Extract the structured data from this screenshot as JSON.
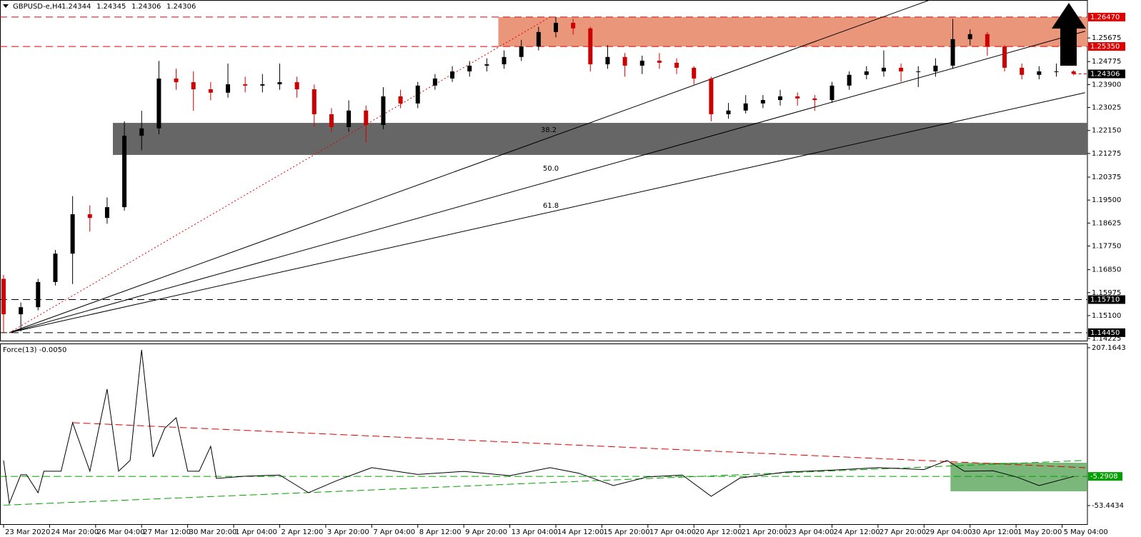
{
  "header": {
    "symbol": "GBPUSD-e,H4",
    "ohlc": [
      1.24344,
      1.24345,
      1.24306,
      1.24306
    ]
  },
  "chart_data": [
    {
      "type": "candlestick",
      "xlim": [
        -0.62,
        188.4
      ],
      "ylim": [
        1.1412,
        1.2712
      ],
      "up_color": "#000000",
      "down_color": "#cc0000",
      "ohlc": [
        [
          1.165,
          1.1665,
          1.1445,
          1.1515
        ],
        [
          1.1515,
          1.156,
          1.145,
          1.1542
        ],
        [
          1.1542,
          1.165,
          1.153,
          1.1638
        ],
        [
          1.1638,
          1.176,
          1.1625,
          1.1746
        ],
        [
          1.1746,
          1.1965,
          1.163,
          1.1896
        ],
        [
          1.1896,
          1.193,
          1.183,
          1.1882
        ],
        [
          1.1882,
          1.196,
          1.186,
          1.1923
        ],
        [
          1.1923,
          1.225,
          1.191,
          1.2195
        ],
        [
          1.2195,
          1.229,
          1.214,
          1.2223
        ],
        [
          1.2223,
          1.248,
          1.22,
          1.2413
        ],
        [
          1.2413,
          1.245,
          1.237,
          1.2399
        ],
        [
          1.2399,
          1.244,
          1.229,
          1.2372
        ],
        [
          1.2372,
          1.24,
          1.233,
          1.2359
        ],
        [
          1.2359,
          1.247,
          1.234,
          1.2391
        ],
        [
          1.2391,
          1.242,
          1.236,
          1.2386
        ],
        [
          1.2386,
          1.243,
          1.236,
          1.2391
        ],
        [
          1.2391,
          1.247,
          1.237,
          1.2399
        ],
        [
          1.2399,
          1.242,
          1.234,
          1.2372
        ],
        [
          1.2372,
          1.239,
          1.223,
          1.2277
        ],
        [
          1.2277,
          1.23,
          1.221,
          1.2228
        ],
        [
          1.2228,
          1.233,
          1.221,
          1.2291
        ],
        [
          1.2291,
          1.231,
          1.217,
          1.2236
        ],
        [
          1.2236,
          1.238,
          1.222,
          1.2345
        ],
        [
          1.2345,
          1.237,
          1.23,
          1.2318
        ],
        [
          1.2318,
          1.24,
          1.23,
          1.2386
        ],
        [
          1.2386,
          1.243,
          1.237,
          1.2413
        ],
        [
          1.2413,
          1.246,
          1.24,
          1.244
        ],
        [
          1.244,
          1.248,
          1.242,
          1.2462
        ],
        [
          1.2462,
          1.249,
          1.244,
          1.2467
        ],
        [
          1.2467,
          1.252,
          1.245,
          1.2495
        ],
        [
          1.2495,
          1.256,
          1.248,
          1.2535
        ],
        [
          1.2535,
          1.261,
          1.252,
          1.259
        ],
        [
          1.259,
          1.2647,
          1.257,
          1.2625
        ],
        [
          1.2625,
          1.264,
          1.258,
          1.2604
        ],
        [
          1.2604,
          1.261,
          1.244,
          1.2467
        ],
        [
          1.2467,
          1.254,
          1.245,
          1.2495
        ],
        [
          1.2495,
          1.251,
          1.242,
          1.2462
        ],
        [
          1.2462,
          1.25,
          1.243,
          1.2481
        ],
        [
          1.2481,
          1.251,
          1.245,
          1.2473
        ],
        [
          1.2473,
          1.249,
          1.243,
          1.2454
        ],
        [
          1.2454,
          1.246,
          1.239,
          1.2413
        ],
        [
          1.2413,
          1.242,
          1.225,
          1.2277
        ],
        [
          1.2277,
          1.232,
          1.226,
          1.2291
        ],
        [
          1.2291,
          1.235,
          1.228,
          1.2318
        ],
        [
          1.2318,
          1.235,
          1.23,
          1.2331
        ],
        [
          1.2331,
          1.237,
          1.231,
          1.2345
        ],
        [
          1.2345,
          1.236,
          1.231,
          1.2337
        ],
        [
          1.2337,
          1.235,
          1.229,
          1.2331
        ],
        [
          1.2331,
          1.24,
          1.232,
          1.2386
        ],
        [
          1.2386,
          1.244,
          1.237,
          1.2427
        ],
        [
          1.2427,
          1.246,
          1.241,
          1.244
        ],
        [
          1.244,
          1.252,
          1.242,
          1.2454
        ],
        [
          1.2454,
          1.247,
          1.24,
          1.244
        ],
        [
          1.244,
          1.246,
          1.238,
          1.244
        ],
        [
          1.244,
          1.249,
          1.242,
          1.2462
        ],
        [
          1.2462,
          1.264,
          1.245,
          1.2563
        ],
        [
          1.2563,
          1.26,
          1.254,
          1.2582
        ],
        [
          1.2582,
          1.259,
          1.25,
          1.2535
        ],
        [
          1.2535,
          1.254,
          1.244,
          1.2454
        ],
        [
          1.2454,
          1.247,
          1.241,
          1.2427
        ],
        [
          1.2427,
          1.246,
          1.241,
          1.244
        ],
        [
          1.244,
          1.247,
          1.242,
          1.244
        ],
        [
          1.244,
          1.2445,
          1.2425,
          1.24306
        ]
      ],
      "yticks": [
        1.25675,
        1.24775,
        {
          "value": 1.239,
          "label": "1.23900"
        },
        1.23025,
        {
          "value": 1.2215,
          "label": "1.22150"
        },
        1.21275,
        1.20375,
        {
          "value": 1.195,
          "label": "1.19500"
        },
        1.18625,
        {
          "value": 1.1775,
          "label": "1.17750"
        },
        {
          "value": 1.1685,
          "label": "1.16850"
        },
        1.15975,
        {
          "value": 1.151,
          "label": "1.15100"
        },
        1.14225
      ],
      "xticks": [
        {
          "value": 0,
          "label": "23 Mar 2020"
        },
        {
          "value": 8,
          "label": "24 Mar 20:00"
        },
        {
          "value": 16,
          "label": "26 Mar 04:00"
        },
        {
          "value": 24,
          "label": "27 Mar 12:00"
        },
        {
          "value": 32,
          "label": "30 Mar 20:00"
        },
        {
          "value": 40,
          "label": "1 Apr 04:00"
        },
        {
          "value": 48,
          "label": "2 Apr 12:00"
        },
        {
          "value": 56,
          "label": "3 Apr 20:00"
        },
        {
          "value": 64,
          "label": "7 Apr 04:00"
        },
        {
          "value": 72,
          "label": "8 Apr 12:00"
        },
        {
          "value": 80,
          "label": "9 Apr 20:00"
        },
        {
          "value": 88,
          "label": "13 Apr 04:00"
        },
        {
          "value": 96,
          "label": "14 Apr 12:00"
        },
        {
          "value": 104,
          "label": "15 Apr 20:00"
        },
        {
          "value": 112,
          "label": "17 Apr 04:00"
        },
        {
          "value": 120,
          "label": "20 Apr 12:00"
        },
        {
          "value": 128,
          "label": "21 Apr 20:00"
        },
        {
          "value": 136,
          "label": "23 Apr 04:00"
        },
        {
          "value": 144,
          "label": "24 Apr 12:00"
        },
        {
          "value": 152,
          "label": "27 Apr 20:00"
        },
        {
          "value": 160,
          "label": "29 Apr 04:00"
        },
        {
          "value": 168,
          "label": "30 Apr 12:00"
        },
        {
          "value": 176,
          "label": "1 May 20:00"
        },
        {
          "value": 184,
          "label": "5 May 04:00"
        }
      ],
      "zones": [
        {
          "from": 1.2535,
          "to": 1.2647,
          "x_start": 86,
          "color": "#e9967a"
        },
        {
          "from": 1.2122,
          "to": 1.2244,
          "x_start": 19,
          "color": "#666666"
        }
      ],
      "levels": [
        {
          "value": 1.2647,
          "label": "1.26470",
          "color": "#e00000"
        },
        {
          "value": 1.2535,
          "label": "1.25350",
          "color": "#e00000"
        },
        {
          "value": 1.1571,
          "label": "1.15710",
          "color": "#000000"
        },
        {
          "value": 1.1445,
          "label": "1.14450",
          "color": "#000000"
        }
      ],
      "current": {
        "value": 1.24306,
        "label": "1.24306"
      },
      "fan": {
        "origin": [
          1,
          1.1445
        ],
        "ends": [
          [
            161,
            1.2712
          ],
          [
            188,
            1.2593
          ],
          [
            188,
            1.2359
          ]
        ],
        "labels": [
          "38.2",
          "50.0",
          "61.8"
        ]
      },
      "fib_base": [
        [
          1,
          1.1445
        ],
        [
          95,
          1.2647
        ]
      ]
    },
    {
      "type": "line",
      "title": "Force(13) -0.0050",
      "color": "#000000",
      "xlim": [
        -0.62,
        188.4
      ],
      "ylim": [
        -85.3,
        214.2
      ],
      "x": [
        0,
        1,
        3,
        4,
        6,
        7,
        10,
        12,
        15,
        18,
        20,
        22,
        24,
        26,
        28,
        30,
        32,
        34,
        36,
        37,
        42,
        48,
        53,
        58,
        64,
        72,
        80,
        88,
        95,
        100,
        106,
        112,
        118,
        123,
        128,
        136,
        144,
        152,
        160,
        164,
        167,
        172,
        176,
        180,
        186
      ],
      "values": [
        21.1,
        -49.9,
        -2.7,
        -2.7,
        -32.2,
        3.2,
        3.2,
        83.4,
        3.2,
        138.8,
        3.2,
        21.1,
        203.6,
        26.8,
        74.0,
        91.6,
        3.2,
        3.2,
        44.4,
        -8.6,
        -5.0,
        -3.0,
        -32.2,
        -12.0,
        9.1,
        -2.0,
        3.0,
        -4.0,
        9.1,
        0.0,
        -20.4,
        -6.0,
        -3.0,
        -38.1,
        -8.0,
        2.0,
        5.0,
        9.1,
        6.0,
        21.1,
        3.2,
        4.0,
        -6.0,
        -20.4,
        -5.3
      ],
      "yticks": [
        207.1643,
        -53.4434
      ],
      "trendlines": [
        {
          "points": [
            [
              12,
              83.4
            ],
            [
              188,
              9.1
            ]
          ],
          "color": "#e00000"
        },
        {
          "points": [
            [
              0,
              -52.8
            ],
            [
              188,
              21.1
            ]
          ],
          "color": "#00a000"
        }
      ],
      "level": {
        "value": -5.2908,
        "label": "-5.2908",
        "color": "#00a000"
      },
      "zone": {
        "from": 17.3,
        "to": -29.9,
        "x_start": 164.6,
        "color": "#5aa55a"
      }
    }
  ]
}
